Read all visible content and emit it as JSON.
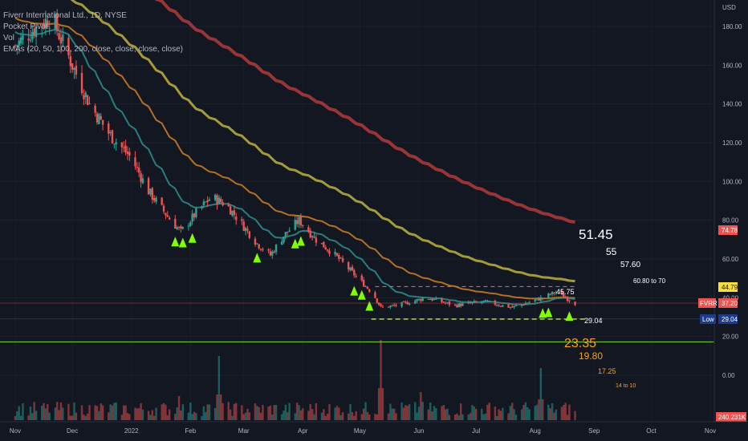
{
  "header": {
    "symbol_line": "Fiverr International Ltd., 1D, NYSE",
    "indicator_1": "Pocket Pivot",
    "indicator_2": "Vol",
    "indicator_3": "EMAs (20, 50, 100, 200, close, close, close, close)"
  },
  "colors": {
    "background": "#131722",
    "up": "#26a69a",
    "down": "#ef5350",
    "ema20": "#2a8a8a",
    "ema50": "#c77a22",
    "ema100": "#b4aa3c",
    "ema200": "#a8373a",
    "pivot": "#7fff00",
    "target_white": "#ffffff",
    "target_orange": "#f7a21b"
  },
  "price_axis": {
    "currency": "USD",
    "ticks": [
      "180.00",
      "160.00",
      "140.00",
      "120.00",
      "100.00",
      "80.00",
      "60.00",
      "40.00",
      "20.00",
      "0.00"
    ]
  },
  "time_axis": {
    "ticks": [
      "Nov",
      "Dec",
      "2022",
      "Feb",
      "Mar",
      "Apr",
      "May",
      "Jun",
      "Jul",
      "Aug",
      "Sep",
      "Oct",
      "Nov"
    ]
  },
  "tags": {
    "ema_top": "74.78",
    "yellow": "44.79",
    "symbol": "FVRR",
    "symbol_price": "37.20",
    "low_label": "Low",
    "low_value": "29.04",
    "volume": "240.231K"
  },
  "annotations": {
    "t_51": "51.45",
    "t_55": "55",
    "t_57": "57.60",
    "t_60": "60.80 to 70",
    "resistance": "45.75",
    "support": "29.04",
    "t_23": "23.35",
    "t_19": "19.80",
    "t_17": "17.25",
    "t_14": "14 to 10"
  },
  "chart_data": {
    "type": "candlestick",
    "title": "Fiverr International Ltd., 1D, NYSE",
    "x_range": [
      "2021-11",
      "2022-11"
    ],
    "ylim": [
      0,
      190
    ],
    "price_path": [
      {
        "date": "2021-11-01",
        "close": 170
      },
      {
        "date": "2021-11-10",
        "close": 178
      },
      {
        "date": "2021-11-20",
        "close": 185
      },
      {
        "date": "2021-12-01",
        "close": 160
      },
      {
        "date": "2021-12-10",
        "close": 140
      },
      {
        "date": "2021-12-20",
        "close": 125
      },
      {
        "date": "2022-01-01",
        "close": 112
      },
      {
        "date": "2022-01-10",
        "close": 95
      },
      {
        "date": "2022-01-20",
        "close": 82
      },
      {
        "date": "2022-01-27",
        "close": 74
      },
      {
        "date": "2022-02-05",
        "close": 85
      },
      {
        "date": "2022-02-12",
        "close": 92
      },
      {
        "date": "2022-02-20",
        "close": 88
      },
      {
        "date": "2022-02-28",
        "close": 78
      },
      {
        "date": "2022-03-08",
        "close": 68
      },
      {
        "date": "2022-03-15",
        "close": 62
      },
      {
        "date": "2022-03-22",
        "close": 72
      },
      {
        "date": "2022-03-30",
        "close": 80
      },
      {
        "date": "2022-04-08",
        "close": 70
      },
      {
        "date": "2022-04-18",
        "close": 62
      },
      {
        "date": "2022-04-28",
        "close": 52
      },
      {
        "date": "2022-05-08",
        "close": 42
      },
      {
        "date": "2022-05-12",
        "close": 35
      },
      {
        "date": "2022-05-20",
        "close": 36
      },
      {
        "date": "2022-06-05",
        "close": 40
      },
      {
        "date": "2022-06-20",
        "close": 36
      },
      {
        "date": "2022-07-05",
        "close": 38
      },
      {
        "date": "2022-07-20",
        "close": 35
      },
      {
        "date": "2022-08-05",
        "close": 40
      },
      {
        "date": "2022-08-12",
        "close": 43
      },
      {
        "date": "2022-08-22",
        "close": 37.2
      }
    ],
    "ema_last": {
      "EMA200": 74.78,
      "EMA100": 44.79
    },
    "levels": {
      "resistance": 45.75,
      "support": 29.04,
      "green_line": 17.25
    },
    "targets_up": [
      51.45,
      55,
      57.6,
      "60.80 to 70"
    ],
    "targets_down": [
      23.35,
      19.8,
      17.25,
      "14 to 10"
    ],
    "pocket_pivot_dates": [
      "2022-01-24",
      "2022-01-28",
      "2022-02-02",
      "2022-03-08",
      "2022-03-28",
      "2022-03-31",
      "2022-04-28",
      "2022-05-02",
      "2022-05-06",
      "2022-08-05",
      "2022-08-08",
      "2022-08-19"
    ]
  }
}
